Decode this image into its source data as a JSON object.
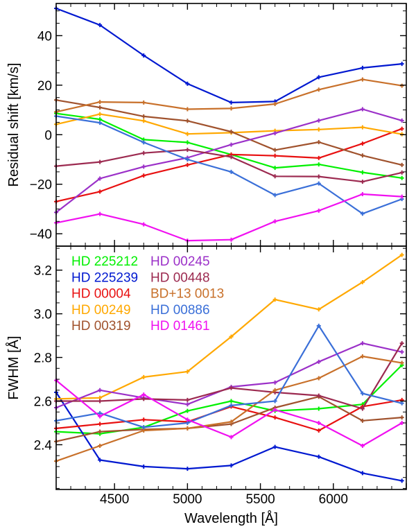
{
  "chart_data": [
    {
      "type": "line",
      "panel": "top",
      "ylabel": "Residual shift [km/s]",
      "xlabel": "",
      "xlim": [
        4100,
        6500
      ],
      "ylim": [
        -45,
        53
      ],
      "yticks": [
        -40,
        -20,
        0,
        20,
        40
      ],
      "ytick_labels": [
        "−40",
        "−20",
        "0",
        "20",
        "40"
      ],
      "x": [
        4100,
        4400,
        4700,
        5000,
        5300,
        5600,
        5900,
        6200,
        6470
      ],
      "series": [
        {
          "name": "HD 225212",
          "color": "#00f000",
          "values": [
            8.6,
            6.2,
            -2,
            -3.1,
            -8,
            -13.4,
            -12,
            -15.2,
            -17.5
          ]
        },
        {
          "name": "HD 225239",
          "color": "#0018d0",
          "values": [
            51,
            44.3,
            32,
            20.6,
            13,
            13.4,
            23.2,
            27,
            28.6
          ]
        },
        {
          "name": "HD 00004",
          "color": "#e81010",
          "values": [
            -27,
            -23,
            -16.5,
            -12.2,
            -8,
            -8.5,
            -9.4,
            -3.6,
            2.4
          ]
        },
        {
          "name": "HD 00249",
          "color": "#ffa800",
          "values": [
            4.2,
            8.3,
            5.6,
            0.3,
            0.8,
            1.6,
            2.1,
            3,
            0.2
          ]
        },
        {
          "name": "HD 00319",
          "color": "#a0522d",
          "values": [
            14,
            11,
            7.4,
            5.6,
            1.2,
            -6.2,
            -3,
            -8.4,
            -12.2
          ]
        },
        {
          "name": "HD 00245",
          "color": "#9b30c8",
          "values": [
            -31.4,
            -17.7,
            -12.9,
            -9.3,
            -4,
            0.6,
            5.7,
            10.3,
            5.7
          ]
        },
        {
          "name": "HD 00448",
          "color": "#9c2a50",
          "values": [
            -12.7,
            -11,
            -7.4,
            -6.1,
            -9,
            -16.8,
            -16.9,
            -19,
            -15.3
          ]
        },
        {
          "name": "BD+13 0013",
          "color": "#c8702a",
          "values": [
            9.2,
            13.2,
            13,
            10.3,
            10.6,
            12.4,
            18.2,
            22.3,
            19.8
          ]
        },
        {
          "name": "HD 00886",
          "color": "#3a6fd8",
          "values": [
            7.5,
            4.8,
            -3.1,
            -10,
            -15,
            -24.4,
            -19.7,
            -31.9,
            -26
          ]
        },
        {
          "name": "HD 01461",
          "color": "#f010f0",
          "values": [
            -35.6,
            -32,
            -36.2,
            -42.8,
            -42.4,
            -35,
            -30.7,
            -24,
            -25
          ]
        }
      ]
    },
    {
      "type": "line",
      "panel": "bottom",
      "ylabel": "FWHM [Å]",
      "xlabel": "Wavelength [Å]",
      "xlim": [
        4100,
        6500
      ],
      "ylim": [
        2.195,
        3.31
      ],
      "yticks": [
        2.4,
        2.6,
        2.8,
        3.0,
        3.2
      ],
      "ytick_labels": [
        "2.4",
        "2.6",
        "2.8",
        "3.0",
        "3.2"
      ],
      "xticks": [
        4500,
        5000,
        5500,
        6000
      ],
      "xtick_labels": [
        "4500",
        "5000",
        "5500",
        "6000"
      ],
      "x": [
        4100,
        4400,
        4700,
        5000,
        5300,
        5600,
        5900,
        6200,
        6470
      ],
      "series": [
        {
          "name": "HD 225212",
          "color": "#00f000",
          "values": [
            2.46,
            2.45,
            2.48,
            2.555,
            2.6,
            2.555,
            2.565,
            2.585,
            2.765
          ]
        },
        {
          "name": "HD 225239",
          "color": "#0018d0",
          "values": [
            2.64,
            2.33,
            2.3,
            2.29,
            2.305,
            2.39,
            2.345,
            2.27,
            2.235
          ]
        },
        {
          "name": "HD 00004",
          "color": "#e81010",
          "values": [
            2.475,
            2.495,
            2.515,
            2.505,
            2.575,
            2.525,
            2.465,
            2.575,
            2.605
          ]
        },
        {
          "name": "HD 00249",
          "color": "#ffa800",
          "values": [
            2.61,
            2.615,
            2.71,
            2.735,
            2.895,
            3.065,
            3.02,
            3.145,
            3.27
          ]
        },
        {
          "name": "HD 00319",
          "color": "#a0522d",
          "values": [
            2.415,
            2.46,
            2.47,
            2.475,
            2.495,
            2.57,
            2.62,
            2.51,
            2.525
          ]
        },
        {
          "name": "HD 00245",
          "color": "#9b30c8",
          "values": [
            2.57,
            2.65,
            2.615,
            2.585,
            2.665,
            2.685,
            2.78,
            2.865,
            2.825
          ]
        },
        {
          "name": "HD 00448",
          "color": "#9c2a50",
          "values": [
            2.6,
            2.6,
            2.61,
            2.605,
            2.66,
            2.64,
            2.625,
            2.565,
            2.865
          ]
        },
        {
          "name": "BD+13 0013",
          "color": "#c8702a",
          "values": [
            2.325,
            2.395,
            2.465,
            2.475,
            2.505,
            2.65,
            2.705,
            2.805,
            2.775
          ]
        },
        {
          "name": "HD 00886",
          "color": "#3a6fd8",
          "values": [
            2.51,
            2.545,
            2.48,
            2.5,
            2.58,
            2.6,
            2.945,
            2.635,
            2.59
          ]
        },
        {
          "name": "HD 01461",
          "color": "#f010f0",
          "values": [
            2.695,
            2.53,
            2.63,
            2.515,
            2.435,
            2.56,
            2.5,
            2.395,
            2.5
          ]
        }
      ]
    }
  ]
}
